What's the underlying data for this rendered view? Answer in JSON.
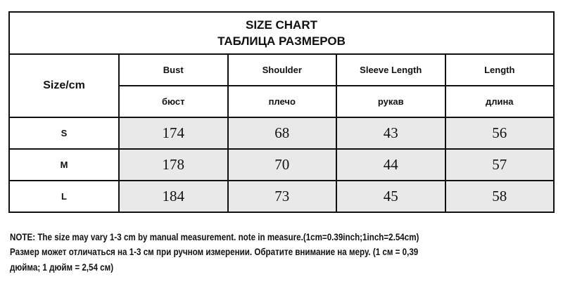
{
  "title": {
    "en": "SIZE CHART",
    "ru": "ТАБЛИЦА РАЗМЕРОВ"
  },
  "size_header": "Size/cm",
  "columns": [
    {
      "en": "Bust",
      "ru": "бюст"
    },
    {
      "en": "Shoulder",
      "ru": "плечо"
    },
    {
      "en": "Sleeve Length",
      "ru": "рукав"
    },
    {
      "en": "Length",
      "ru": "длина"
    }
  ],
  "rows": [
    {
      "size": "S",
      "values": [
        "174",
        "68",
        "43",
        "56"
      ]
    },
    {
      "size": "M",
      "values": [
        "178",
        "70",
        "44",
        "57"
      ]
    },
    {
      "size": "L",
      "values": [
        "184",
        "73",
        "45",
        "58"
      ]
    }
  ],
  "note": {
    "line1": "NOTE:  The size may vary 1-3 cm by manual measurement. note in measure.(1cm=0.39inch;1inch=2.54cm)",
    "line2": "Размер может отличаться на 1-3 см при ручном измерении. Обратите внимание на меру. (1 см = 0,39",
    "line3": "дюйма; 1 дюйм = 2,54 см)"
  },
  "colors": {
    "cell_fill": "#e9e9e9",
    "border": "#111111"
  }
}
